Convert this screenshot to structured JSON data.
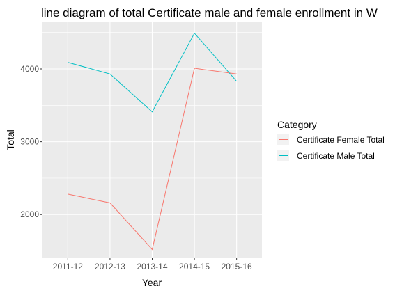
{
  "chart_data": {
    "type": "line",
    "title": "line diagram of total Certificate male and female enrollment in W",
    "xlabel": "Year",
    "ylabel": "Total",
    "categories": [
      "2011-12",
      "2012-13",
      "2013-14",
      "2014-15",
      "2015-16"
    ],
    "y_ticks": [
      2000,
      3000,
      4000
    ],
    "ylim": [
      1400,
      4650
    ],
    "grid": true,
    "legend_title": "Category",
    "legend_position": "right",
    "series": [
      {
        "name": "Certificate Female Total",
        "color": "#F8766D",
        "values": [
          2280,
          2160,
          1520,
          4010,
          3930
        ]
      },
      {
        "name": "Certificate Male Total",
        "color": "#00BFC4",
        "values": [
          4090,
          3930,
          3410,
          4490,
          3830
        ]
      }
    ]
  }
}
